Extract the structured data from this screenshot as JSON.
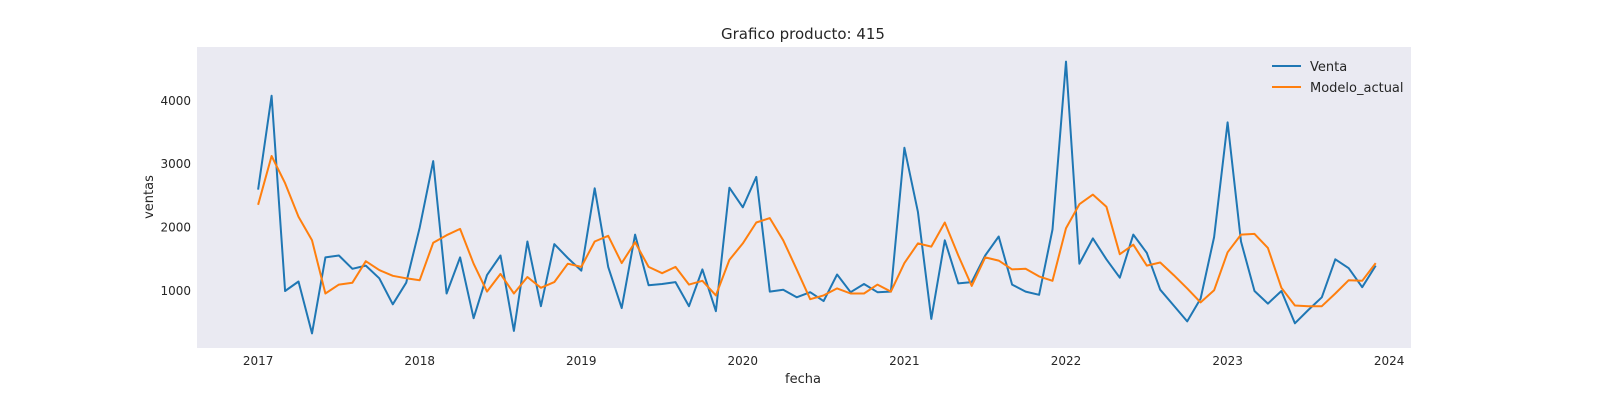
{
  "chart_data": {
    "type": "line",
    "title": "Grafico producto: 415",
    "xlabel": "fecha",
    "ylabel": "ventas",
    "x_ticks": [
      "2017",
      "2018",
      "2019",
      "2020",
      "2021",
      "2022",
      "2023",
      "2024"
    ],
    "y_ticks": [
      1000,
      2000,
      3000,
      4000
    ],
    "xlim": [
      "2016-08-15",
      "2024-02-20"
    ],
    "ylim": [
      100,
      4850
    ],
    "grid": false,
    "legend_position": "top-right",
    "x": [
      "2017-01",
      "2017-02",
      "2017-03",
      "2017-04",
      "2017-05",
      "2017-06",
      "2017-07",
      "2017-08",
      "2017-09",
      "2017-10",
      "2017-11",
      "2017-12",
      "2018-01",
      "2018-02",
      "2018-03",
      "2018-04",
      "2018-05",
      "2018-06",
      "2018-07",
      "2018-08",
      "2018-09",
      "2018-10",
      "2018-11",
      "2018-12",
      "2019-01",
      "2019-02",
      "2019-03",
      "2019-04",
      "2019-05",
      "2019-06",
      "2019-07",
      "2019-08",
      "2019-09",
      "2019-10",
      "2019-11",
      "2019-12",
      "2020-01",
      "2020-02",
      "2020-03",
      "2020-04",
      "2020-05",
      "2020-06",
      "2020-07",
      "2020-08",
      "2020-09",
      "2020-10",
      "2020-11",
      "2020-12",
      "2021-01",
      "2021-02",
      "2021-03",
      "2021-04",
      "2021-05",
      "2021-06",
      "2021-07",
      "2021-08",
      "2021-09",
      "2021-10",
      "2021-11",
      "2021-12",
      "2022-01",
      "2022-02",
      "2022-03",
      "2022-04",
      "2022-05",
      "2022-06",
      "2022-07",
      "2022-08",
      "2022-09",
      "2022-10",
      "2022-11",
      "2022-12",
      "2023-01",
      "2023-02",
      "2023-03",
      "2023-04",
      "2023-05",
      "2023-06",
      "2023-07",
      "2023-08",
      "2023-09",
      "2023-10",
      "2023-11",
      "2023-12"
    ],
    "series": [
      {
        "name": "Venta",
        "color": "#1f77b4",
        "values": [
          2600,
          4080,
          1000,
          1150,
          330,
          1530,
          1560,
          1350,
          1400,
          1200,
          790,
          1130,
          2000,
          3050,
          960,
          1530,
          570,
          1250,
          1560,
          370,
          1780,
          760,
          1740,
          1520,
          1320,
          2620,
          1380,
          730,
          1890,
          1090,
          1110,
          1140,
          760,
          1340,
          680,
          2630,
          2320,
          2800,
          990,
          1020,
          900,
          980,
          840,
          1260,
          980,
          1110,
          980,
          990,
          3260,
          2250,
          560,
          1800,
          1120,
          1140,
          1560,
          1860,
          1100,
          990,
          940,
          1970,
          4620,
          1430,
          1830,
          1500,
          1210,
          1890,
          1600,
          1020,
          770,
          520,
          880,
          1850,
          3660,
          1780,
          1000,
          800,
          1000,
          490,
          700,
          900,
          1500,
          1360,
          1060,
          1400
        ]
      },
      {
        "name": "Modelo_actual",
        "color": "#ff7f0e",
        "values": [
          2360,
          3130,
          2700,
          2170,
          1800,
          960,
          1100,
          1130,
          1470,
          1330,
          1240,
          1200,
          1170,
          1760,
          1880,
          1980,
          1430,
          990,
          1270,
          960,
          1220,
          1050,
          1140,
          1430,
          1380,
          1780,
          1870,
          1440,
          1770,
          1380,
          1280,
          1380,
          1100,
          1160,
          930,
          1490,
          1750,
          2080,
          2150,
          1800,
          1340,
          870,
          930,
          1040,
          960,
          960,
          1100,
          990,
          1440,
          1750,
          1700,
          2080,
          1560,
          1080,
          1530,
          1480,
          1340,
          1350,
          1230,
          1160,
          1990,
          2370,
          2520,
          2330,
          1580,
          1730,
          1400,
          1450,
          1250,
          1040,
          820,
          1010,
          1610,
          1890,
          1900,
          1680,
          1050,
          770,
          760,
          760,
          960,
          1170,
          1160,
          1440
        ]
      }
    ]
  }
}
